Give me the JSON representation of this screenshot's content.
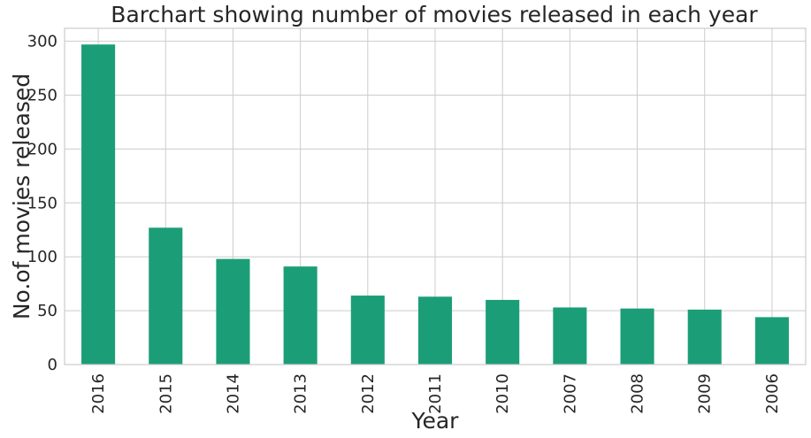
{
  "chart_data": {
    "type": "bar",
    "title": "Barchart showing number of movies released in each year",
    "xlabel": "Year",
    "ylabel": "No.of movies released",
    "categories": [
      "2016",
      "2015",
      "2014",
      "2013",
      "2012",
      "2011",
      "2010",
      "2007",
      "2008",
      "2009",
      "2006"
    ],
    "values": [
      297,
      127,
      98,
      91,
      64,
      63,
      60,
      53,
      52,
      51,
      44
    ],
    "ylim": [
      0,
      312
    ],
    "yticks": [
      0,
      50,
      100,
      150,
      200,
      250,
      300
    ],
    "bar_color": "#1b9e77",
    "grid": true,
    "legend": "none"
  }
}
